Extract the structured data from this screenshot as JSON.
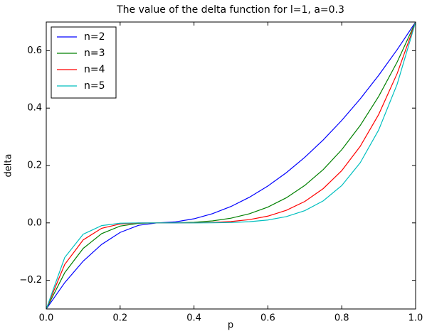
{
  "chart_data": {
    "type": "line",
    "title": "The value of the delta function for l=1, a=0.3",
    "xlabel": "p",
    "ylabel": "delta",
    "x": [
      0,
      0.05,
      0.1,
      0.15,
      0.2,
      0.25,
      0.3,
      0.35,
      0.4,
      0.45,
      0.5,
      0.55,
      0.6,
      0.65,
      0.7,
      0.75,
      0.8,
      0.85,
      0.9,
      0.95,
      1.0
    ],
    "series": [
      {
        "name": "n=2",
        "color": "#0000ff",
        "values": [
          -0.3,
          -0.2083,
          -0.1333,
          -0.075,
          -0.0333,
          -0.0083,
          0,
          0.0036,
          0.0143,
          0.0321,
          0.0571,
          0.0893,
          0.1286,
          0.175,
          0.2286,
          0.2893,
          0.3571,
          0.4321,
          0.5143,
          0.6036,
          0.7
        ]
      },
      {
        "name": "n=3",
        "color": "#008000",
        "values": [
          -0.3,
          -0.1736,
          -0.0889,
          -0.0375,
          -0.0111,
          -0.0014,
          0,
          0.0003,
          0.002,
          0.0069,
          0.0163,
          0.0319,
          0.0551,
          0.0875,
          0.1306,
          0.186,
          0.2551,
          0.3395,
          0.4408,
          0.5604,
          0.7
        ]
      },
      {
        "name": "n=4",
        "color": "#ff0000",
        "values": [
          -0.3,
          -0.1447,
          -0.0593,
          -0.0188,
          -0.0037,
          -0.0002,
          0,
          0,
          0.0003,
          0.0015,
          0.0047,
          0.0114,
          0.0236,
          0.0438,
          0.0746,
          0.1196,
          0.1822,
          0.2668,
          0.3778,
          0.5204,
          0.7
        ]
      },
      {
        "name": "n=5",
        "color": "#00bfbf",
        "values": [
          -0.3,
          -0.1206,
          -0.0395,
          -0.0094,
          -0.0012,
          0,
          0,
          0,
          0,
          0.0003,
          0.0013,
          0.0041,
          0.0101,
          0.0219,
          0.0426,
          0.0769,
          0.1301,
          0.2096,
          0.3239,
          0.4832,
          0.7
        ]
      }
    ],
    "xlim": [
      0,
      1
    ],
    "ylim": [
      -0.3,
      0.7
    ],
    "xticks": [
      {
        "value": 0,
        "label": "0.0"
      },
      {
        "value": 0.2,
        "label": "0.2"
      },
      {
        "value": 0.4,
        "label": "0.4"
      },
      {
        "value": 0.6,
        "label": "0.6"
      },
      {
        "value": 0.8,
        "label": "0.8"
      },
      {
        "value": 1,
        "label": "1.0"
      }
    ],
    "yticks": [
      {
        "value": -0.2,
        "label": "−0.2"
      },
      {
        "value": 0,
        "label": "0.0"
      },
      {
        "value": 0.2,
        "label": "0.2"
      },
      {
        "value": 0.4,
        "label": "0.4"
      },
      {
        "value": 0.6,
        "label": "0.6"
      }
    ],
    "legend": "upper left",
    "grid": false
  }
}
